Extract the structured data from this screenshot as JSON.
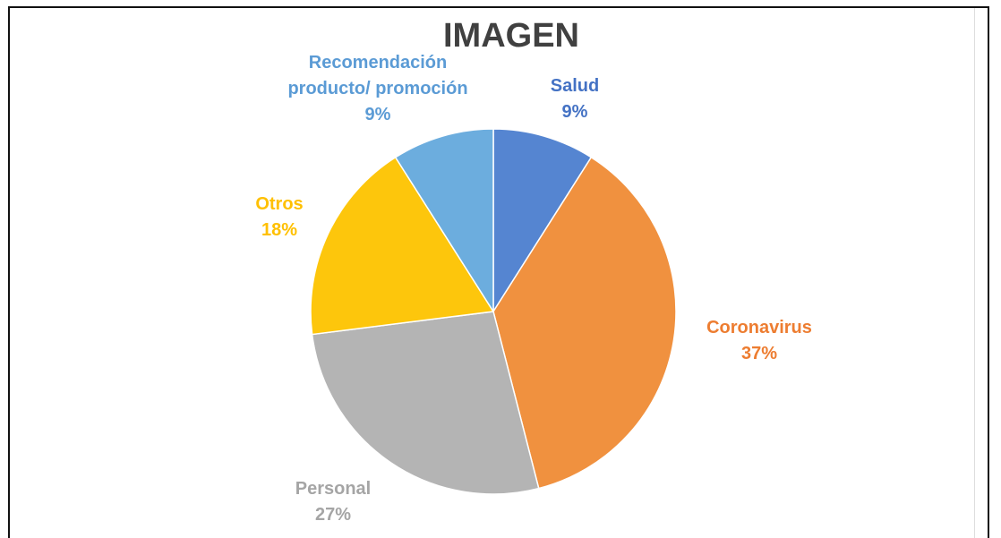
{
  "chart_data": {
    "type": "pie",
    "title": "IMAGEN",
    "categories": [
      "Salud",
      "Coronavirus",
      "Personal",
      "Otros",
      "Recomendación producto/ promoción"
    ],
    "values": [
      9,
      37,
      27,
      18,
      9
    ],
    "value_labels": [
      "9%",
      "37%",
      "27%",
      "18%",
      "9%"
    ],
    "colors": [
      "#5585d1",
      "#f0913f",
      "#b4b4b4",
      "#fdc60c",
      "#6cadde"
    ],
    "label_colors": [
      "#4472c4",
      "#ed7d31",
      "#a5a5a5",
      "#ffc000",
      "#5b9bd5"
    ]
  }
}
